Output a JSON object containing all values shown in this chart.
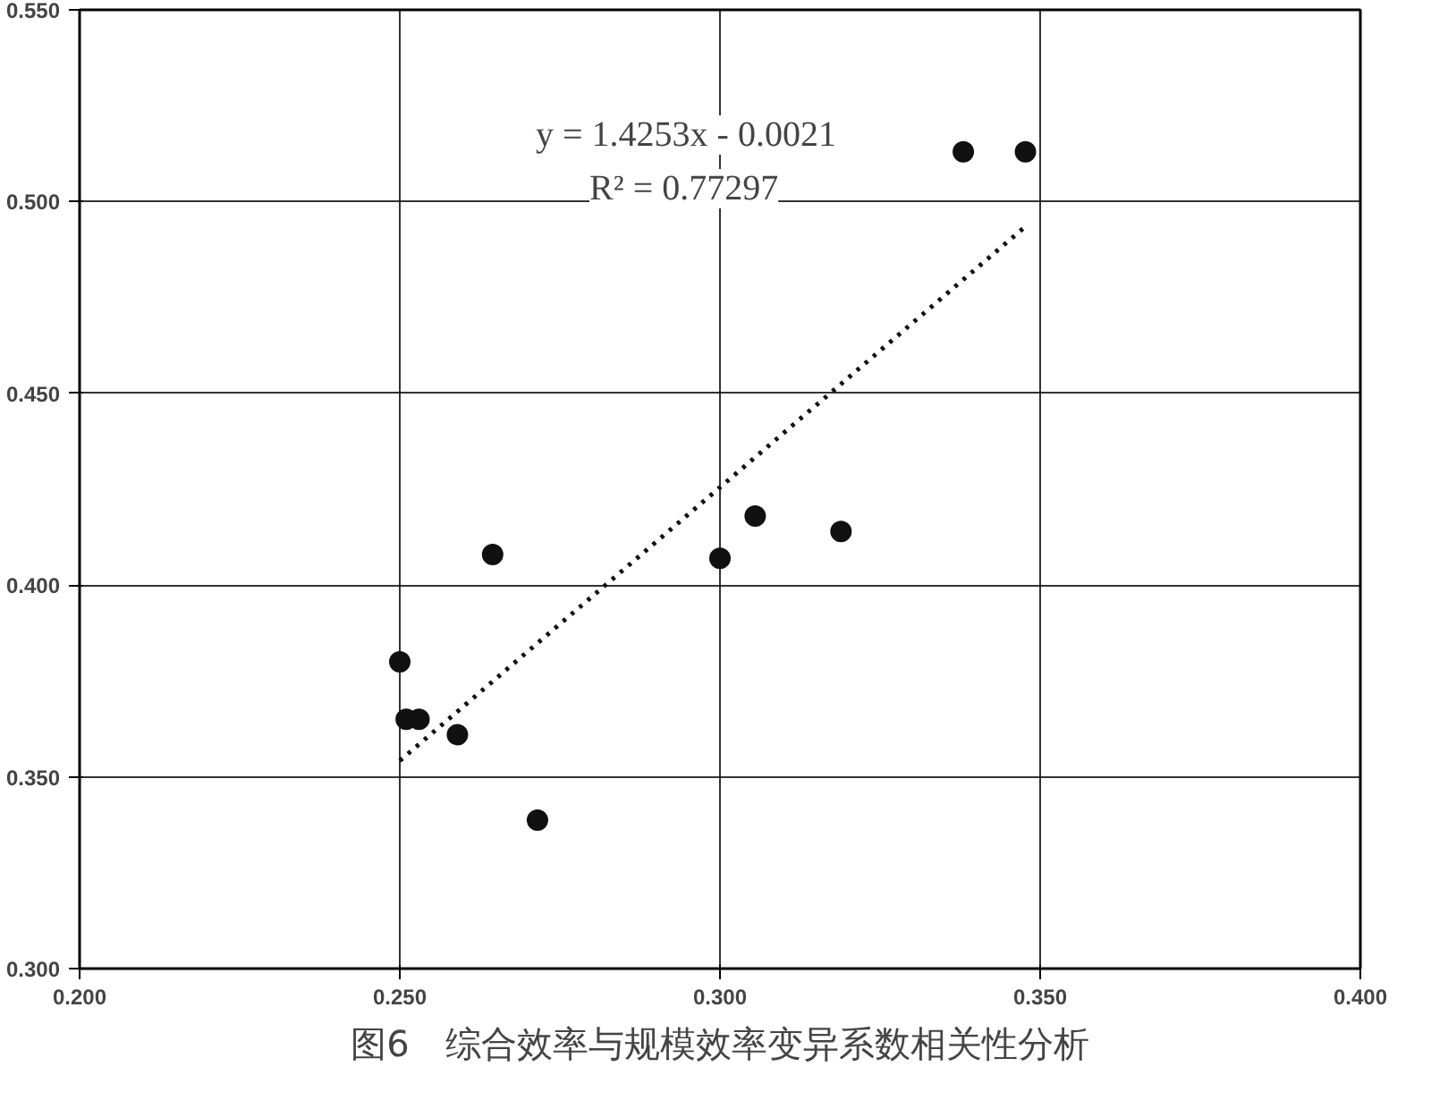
{
  "chart_data": {
    "type": "scatter",
    "title": "图6　综合效率与规模效率变异系数相关性分析",
    "xlim": [
      0.2,
      0.4
    ],
    "ylim": [
      0.3,
      0.55
    ],
    "xticks": [
      {
        "value": 0.2,
        "label": "0.200"
      },
      {
        "value": 0.25,
        "label": "0.250"
      },
      {
        "value": 0.3,
        "label": "0.300"
      },
      {
        "value": 0.35,
        "label": "0.350"
      },
      {
        "value": 0.4,
        "label": "0.400"
      }
    ],
    "yticks": [
      {
        "value": 0.3,
        "label": "0.300"
      },
      {
        "value": 0.35,
        "label": "0.350"
      },
      {
        "value": 0.4,
        "label": "0.400"
      },
      {
        "value": 0.45,
        "label": "0.450"
      },
      {
        "value": 0.5,
        "label": "0.500"
      },
      {
        "value": 0.55,
        "label": "0.550"
      }
    ],
    "grid": true,
    "marker": "circle",
    "series": [
      {
        "color": "#111111",
        "x": [
          0.338,
          0.3477,
          0.2645,
          0.25,
          0.251,
          0.253,
          0.259,
          0.2715,
          0.3,
          0.3055,
          0.3189
        ],
        "values": [
          0.513,
          0.513,
          0.408,
          0.38,
          0.365,
          0.365,
          0.361,
          0.3387,
          0.407,
          0.418,
          0.414
        ]
      },
      {
        "type": "line",
        "marker": "none",
        "color": "#111111",
        "line_style": "dotted",
        "x": [
          0.25,
          0.3477
        ],
        "values": [
          0.3542,
          0.4935
        ]
      }
    ],
    "annotations": [
      "y = 1.4253x - 0.0021",
      "R² = 0.77297"
    ]
  }
}
